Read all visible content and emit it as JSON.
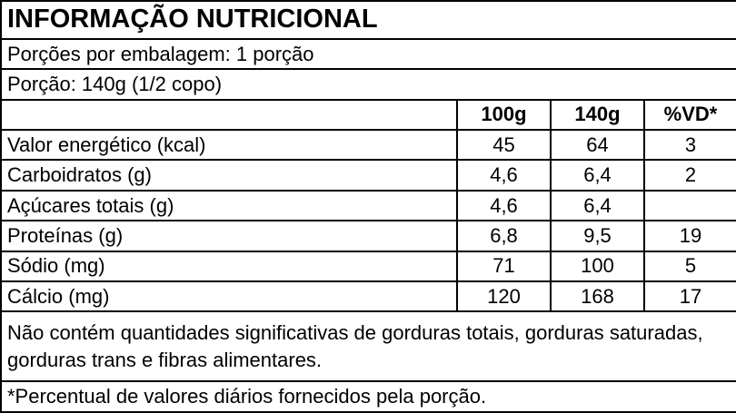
{
  "title": "INFORMAÇÃO NUTRICIONAL",
  "servings_per_package": "Porções por embalagem: 1 porção",
  "serving_size": "Porção: 140g (1/2 copo)",
  "table": {
    "columns": [
      "100g",
      "140g",
      "%VD*"
    ],
    "rows": [
      [
        "Valor energético (kcal)",
        "45",
        "64",
        "3"
      ],
      [
        "Carboidratos (g)",
        "4,6",
        "6,4",
        "2"
      ],
      [
        "Açúcares totais (g)",
        "4,6",
        "6,4",
        null
      ],
      [
        "Proteínas (g)",
        "6,8",
        "9,5",
        "19"
      ],
      [
        "Sódio (mg)",
        "71",
        "100",
        "5"
      ],
      [
        "Cálcio (mg)",
        "120",
        "168",
        "17"
      ]
    ]
  },
  "note": "Não contém quantidades significativas de gorduras totais, gorduras saturadas, gorduras trans e fibras alimentares.",
  "footnote": "*Percentual de valores diários fornecidos pela porção."
}
